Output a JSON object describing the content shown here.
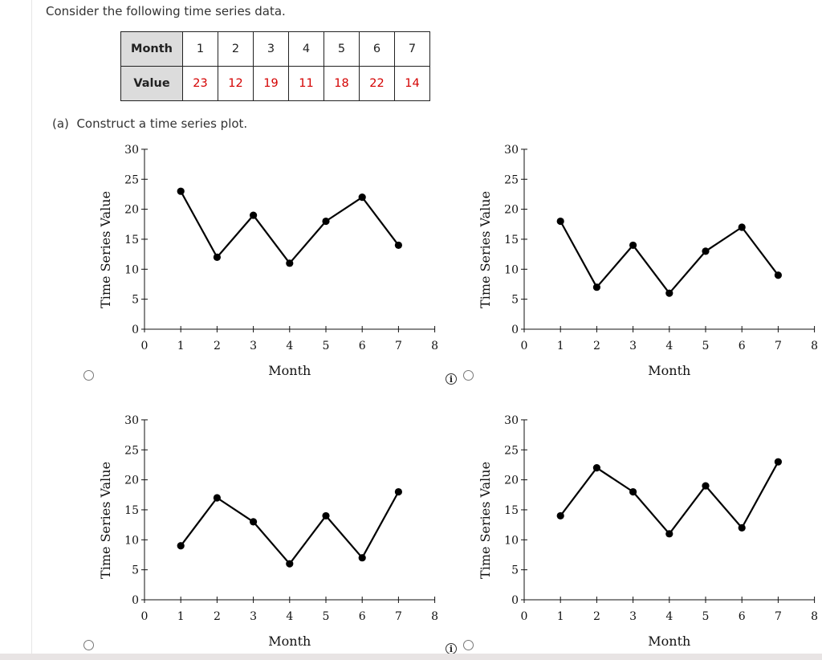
{
  "intro_text": "Consider the following time series data.",
  "table": {
    "row_headers": [
      "Month",
      "Value"
    ],
    "months": [
      "1",
      "2",
      "3",
      "4",
      "5",
      "6",
      "7"
    ],
    "values": [
      "23",
      "12",
      "19",
      "11",
      "18",
      "22",
      "14"
    ]
  },
  "part_a": {
    "label": "(a)",
    "text": "Construct a time series plot."
  },
  "colors": {
    "value_text": "#d40000",
    "table_header_bg": "#dcdcdc"
  },
  "chart_data": [
    {
      "type": "line",
      "option": 1,
      "xlabel": "Month",
      "ylabel": "Time Series Value",
      "xlim": [
        0,
        8
      ],
      "ylim": [
        0,
        30
      ],
      "x_ticks": [
        "0",
        "1",
        "2",
        "3",
        "4",
        "5",
        "6",
        "7",
        "8"
      ],
      "y_ticks": [
        "0",
        "5",
        "10",
        "15",
        "20",
        "25",
        "30"
      ],
      "x": [
        1,
        2,
        3,
        4,
        5,
        6,
        7
      ],
      "y": [
        23,
        12,
        19,
        11,
        18,
        22,
        14
      ],
      "grid": false
    },
    {
      "type": "line",
      "option": 2,
      "xlabel": "Month",
      "ylabel": "Time Series Value",
      "xlim": [
        0,
        8
      ],
      "ylim": [
        0,
        30
      ],
      "x_ticks": [
        "0",
        "1",
        "2",
        "3",
        "4",
        "5",
        "6",
        "7",
        "8"
      ],
      "y_ticks": [
        "0",
        "5",
        "10",
        "15",
        "20",
        "25",
        "30"
      ],
      "x": [
        1,
        2,
        3,
        4,
        5,
        6,
        7
      ],
      "y": [
        18,
        7,
        14,
        6,
        13,
        17,
        9
      ],
      "grid": false
    },
    {
      "type": "line",
      "option": 3,
      "xlabel": "Month",
      "ylabel": "Time Series Value",
      "xlim": [
        0,
        8
      ],
      "ylim": [
        0,
        30
      ],
      "x_ticks": [
        "0",
        "1",
        "2",
        "3",
        "4",
        "5",
        "6",
        "7",
        "8"
      ],
      "y_ticks": [
        "0",
        "5",
        "10",
        "15",
        "20",
        "25",
        "30"
      ],
      "x": [
        1,
        2,
        3,
        4,
        5,
        6,
        7
      ],
      "y": [
        9,
        17,
        13,
        6,
        14,
        7,
        18
      ],
      "grid": false
    },
    {
      "type": "line",
      "option": 4,
      "xlabel": "Month",
      "ylabel": "Time Series Value",
      "xlim": [
        0,
        8
      ],
      "ylim": [
        0,
        30
      ],
      "x_ticks": [
        "0",
        "1",
        "2",
        "3",
        "4",
        "5",
        "6",
        "7",
        "8"
      ],
      "y_ticks": [
        "0",
        "5",
        "10",
        "15",
        "20",
        "25",
        "30"
      ],
      "x": [
        1,
        2,
        3,
        4,
        5,
        6,
        7
      ],
      "y": [
        14,
        22,
        18,
        11,
        19,
        12,
        23
      ],
      "grid": false
    }
  ]
}
